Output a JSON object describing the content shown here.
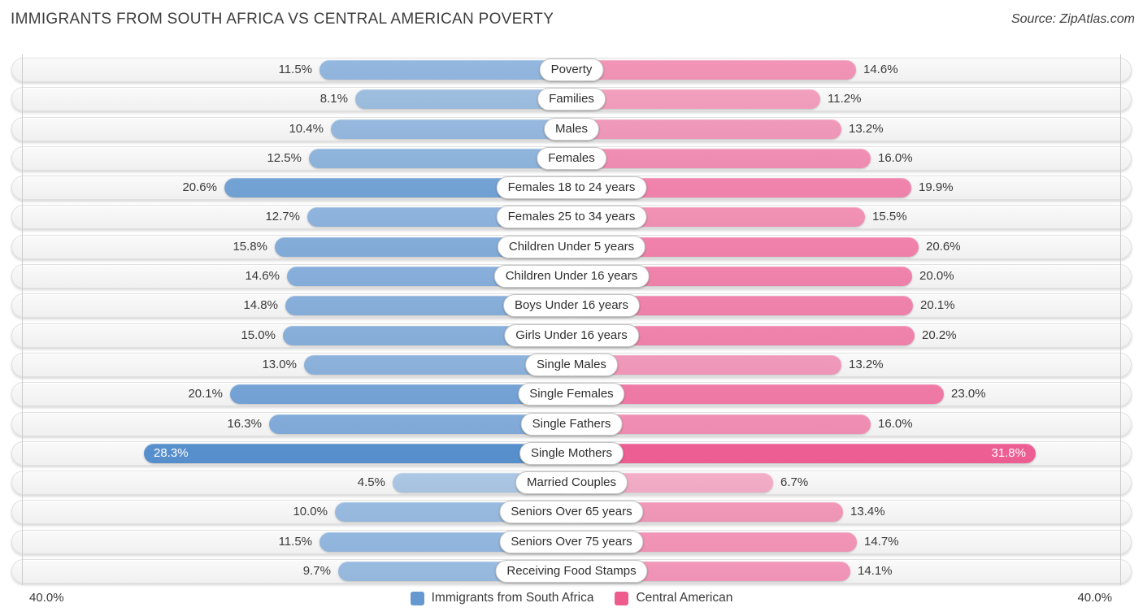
{
  "header": {
    "title": "IMMIGRANTS FROM SOUTH AFRICA VS CENTRAL AMERICAN POVERTY",
    "source": "Source: ZipAtlas.com"
  },
  "chart_data": {
    "type": "bar",
    "variant": "bidirectional-horizontal",
    "title": "Immigrants from South Africa vs Central American Poverty",
    "categories": [
      "Poverty",
      "Families",
      "Males",
      "Females",
      "Females 18 to 24 years",
      "Females 25 to 34 years",
      "Children Under 5 years",
      "Children Under 16 years",
      "Boys Under 16 years",
      "Girls Under 16 years",
      "Single Males",
      "Single Females",
      "Single Fathers",
      "Single Mothers",
      "Married Couples",
      "Seniors Over 65 years",
      "Seniors Over 75 years",
      "Receiving Food Stamps"
    ],
    "series": [
      {
        "name": "Immigrants from South Africa",
        "side": "left",
        "base_color": "#2e75c3",
        "legend_color": "#6699cf",
        "values": [
          11.5,
          8.1,
          10.4,
          12.5,
          20.6,
          12.7,
          15.8,
          14.6,
          14.8,
          15.0,
          13.0,
          20.1,
          16.3,
          28.3,
          4.5,
          10.0,
          11.5,
          9.7
        ]
      },
      {
        "name": "Central American",
        "side": "right",
        "base_color": "#eb4482",
        "legend_color": "#ee5c8e",
        "values": [
          14.6,
          11.2,
          13.2,
          16.0,
          19.9,
          15.5,
          20.6,
          20.0,
          20.1,
          20.2,
          13.2,
          23.0,
          16.0,
          31.8,
          6.7,
          13.4,
          14.7,
          14.1
        ]
      }
    ],
    "value_suffix": "%",
    "axis": {
      "max": 40,
      "left_label": "40.0%",
      "right_label": "40.0%"
    },
    "legend_position": "bottom-center",
    "grid": "edge-ticks-only"
  }
}
